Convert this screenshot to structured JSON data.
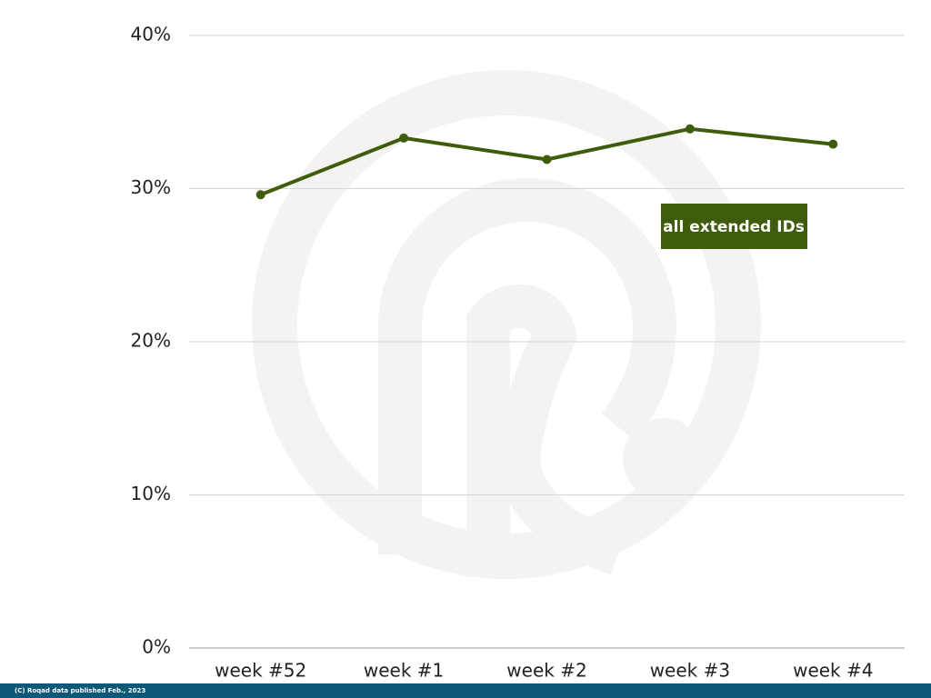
{
  "chart_data": {
    "type": "line",
    "categories": [
      "week #52",
      "week #1",
      "week #2",
      "week #3",
      "week #4"
    ],
    "series": [
      {
        "name": "all extended IDs",
        "color": "#3f5c0c",
        "values": [
          29.6,
          33.3,
          31.9,
          33.9,
          32.9
        ]
      }
    ],
    "ylim": [
      0,
      40
    ],
    "yticks": [
      {
        "value": 0,
        "label": "0%"
      },
      {
        "value": 10,
        "label": "10%"
      },
      {
        "value": 20,
        "label": "20%"
      },
      {
        "value": 30,
        "label": "30%"
      },
      {
        "value": 40,
        "label": "40%"
      }
    ],
    "grid": true,
    "footer": "(C) Roqad data published Feb., 2023"
  }
}
